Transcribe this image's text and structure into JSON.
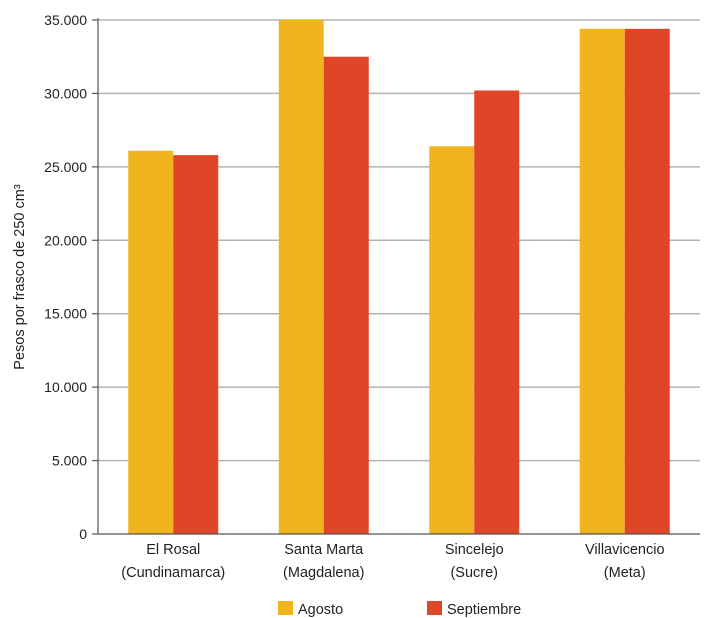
{
  "chart_data": {
    "type": "bar",
    "title": "",
    "xlabel": "",
    "ylabel": "Pesos por frasco de 250 cm³",
    "ylim": [
      0,
      35000
    ],
    "yticks": [
      0,
      5000,
      10000,
      15000,
      20000,
      25000,
      30000,
      35000
    ],
    "ytick_labels": [
      "0",
      "5.000",
      "10.000",
      "15.000",
      "20.000",
      "25.000",
      "30.000",
      "35.000"
    ],
    "grid": true,
    "legend_position": "bottom",
    "categories": [
      {
        "line1": "El Rosal",
        "line2": "(Cundinamarca)"
      },
      {
        "line1": "Santa Marta",
        "line2": "(Magdalena)"
      },
      {
        "line1": "Sincelejo",
        "line2": "(Sucre)"
      },
      {
        "line1": "Villavicencio",
        "line2": "(Meta)"
      }
    ],
    "series": [
      {
        "name": "Agosto",
        "color": "#F0B41E",
        "values": [
          26100,
          35000,
          26400,
          34400
        ]
      },
      {
        "name": "Septiembre",
        "color": "#DF4527",
        "values": [
          25800,
          32500,
          30200,
          34400
        ]
      }
    ]
  }
}
